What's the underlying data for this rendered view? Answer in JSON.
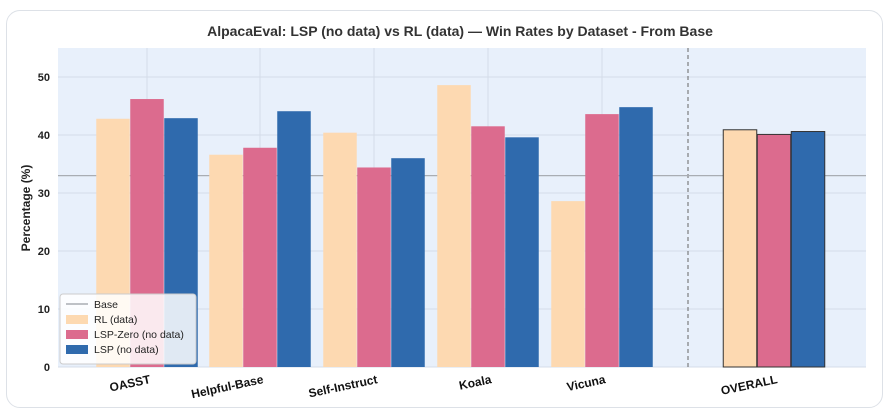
{
  "chart_data": {
    "type": "bar",
    "title": "AlpacaEval: LSP (no data) vs RL (data) — Win Rates by Dataset - From Base",
    "xlabel": "",
    "ylabel": "Percentage (%)",
    "ylim": [
      0,
      55
    ],
    "yticks": [
      "0",
      "10",
      "20",
      "30",
      "40",
      "50"
    ],
    "categories": [
      "OASST",
      "Helpful-Base",
      "Self-Instruct",
      "Koala",
      "Vicuna",
      "OVERALL"
    ],
    "series": [
      {
        "name": "RL (data)",
        "color": "#fdd9b1",
        "values": [
          42.8,
          36.6,
          40.4,
          48.6,
          28.6,
          40.9
        ]
      },
      {
        "name": "LSP-Zero (no data)",
        "color": "#dc6b8e",
        "values": [
          46.2,
          37.8,
          34.4,
          41.5,
          43.6,
          40.1
        ]
      },
      {
        "name": "LSP (no data)",
        "color": "#2f6aad",
        "values": [
          42.9,
          44.1,
          36.0,
          39.6,
          44.8,
          40.6
        ]
      }
    ],
    "baseline": {
      "name": "Base",
      "value": 33.0,
      "color": "#a9adb3"
    },
    "legend_position": "lower-left",
    "grid": true,
    "separator_before": "OVERALL",
    "plot_background": "#e8f0fb"
  }
}
